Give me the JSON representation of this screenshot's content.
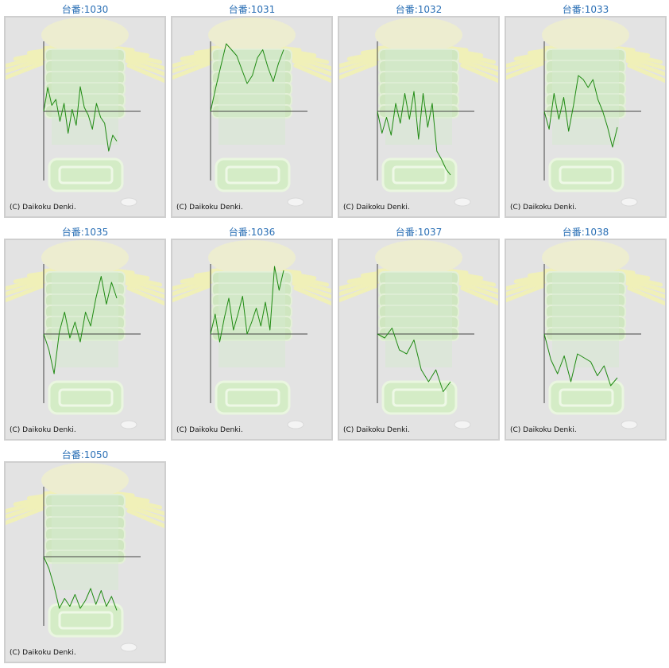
{
  "copyright": "(C) Daikoku Denki.",
  "line_color": "#1f8a12",
  "title_color": "#2a6fb5",
  "chart_data": [
    {
      "type": "line",
      "title": "台番:1030",
      "series": [
        {
          "values": [
            0.0,
            0.6,
            0.15,
            0.3,
            -0.25,
            0.2,
            -0.55,
            0.05,
            -0.35,
            0.62,
            0.1,
            -0.1,
            -0.45,
            0.2,
            -0.15,
            -0.3,
            -1.0,
            -0.6,
            -0.75
          ]
        }
      ]
    },
    {
      "type": "line",
      "title": "台番:1031",
      "series": [
        {
          "values": [
            0.0,
            0.6,
            1.15,
            1.7,
            1.55,
            1.4,
            1.05,
            0.7,
            0.9,
            1.35,
            1.55,
            1.1,
            0.75,
            1.2,
            1.55
          ]
        }
      ]
    },
    {
      "type": "line",
      "title": "台番:1032",
      "series": [
        {
          "values": [
            0.0,
            -0.55,
            -0.15,
            -0.6,
            0.2,
            -0.3,
            0.45,
            -0.2,
            0.5,
            -0.7,
            0.45,
            -0.4,
            0.2,
            -1.0,
            -1.2,
            -1.45,
            -1.6
          ]
        }
      ]
    },
    {
      "type": "line",
      "title": "台番:1033",
      "series": [
        {
          "values": [
            0.0,
            -0.45,
            0.45,
            -0.2,
            0.35,
            -0.5,
            0.15,
            0.9,
            0.8,
            0.6,
            0.8,
            0.3,
            0.0,
            -0.4,
            -0.9,
            -0.4
          ]
        }
      ]
    },
    {
      "type": "line",
      "title": "台番:1035",
      "series": [
        {
          "values": [
            0.0,
            -0.4,
            -1.0,
            0.05,
            0.55,
            -0.1,
            0.3,
            -0.2,
            0.55,
            0.2,
            0.9,
            1.45,
            0.75,
            1.3,
            0.9
          ]
        }
      ]
    },
    {
      "type": "line",
      "title": "台番:1036",
      "series": [
        {
          "values": [
            0.0,
            0.5,
            -0.2,
            0.4,
            0.9,
            0.1,
            0.5,
            0.95,
            0.0,
            0.3,
            0.65,
            0.2,
            0.8,
            0.1,
            1.7,
            1.1,
            1.6
          ]
        }
      ]
    },
    {
      "type": "line",
      "title": "台番:1037",
      "series": [
        {
          "values": [
            0.0,
            -0.1,
            0.15,
            -0.4,
            -0.5,
            -0.15,
            -0.9,
            -1.2,
            -0.9,
            -1.45,
            -1.2
          ]
        }
      ]
    },
    {
      "type": "line",
      "title": "台番:1038",
      "series": [
        {
          "values": [
            0.0,
            -0.65,
            -1.0,
            -0.55,
            -1.2,
            -0.5,
            -0.6,
            -0.7,
            -1.05,
            -0.8,
            -1.3,
            -1.1
          ]
        }
      ]
    },
    {
      "type": "line",
      "title": "台番:1050",
      "series": [
        {
          "values": [
            0.0,
            -0.3,
            -0.75,
            -1.3,
            -1.05,
            -1.25,
            -0.95,
            -1.3,
            -1.1,
            -0.8,
            -1.2,
            -0.85,
            -1.25,
            -1.0,
            -1.35
          ]
        }
      ]
    }
  ]
}
